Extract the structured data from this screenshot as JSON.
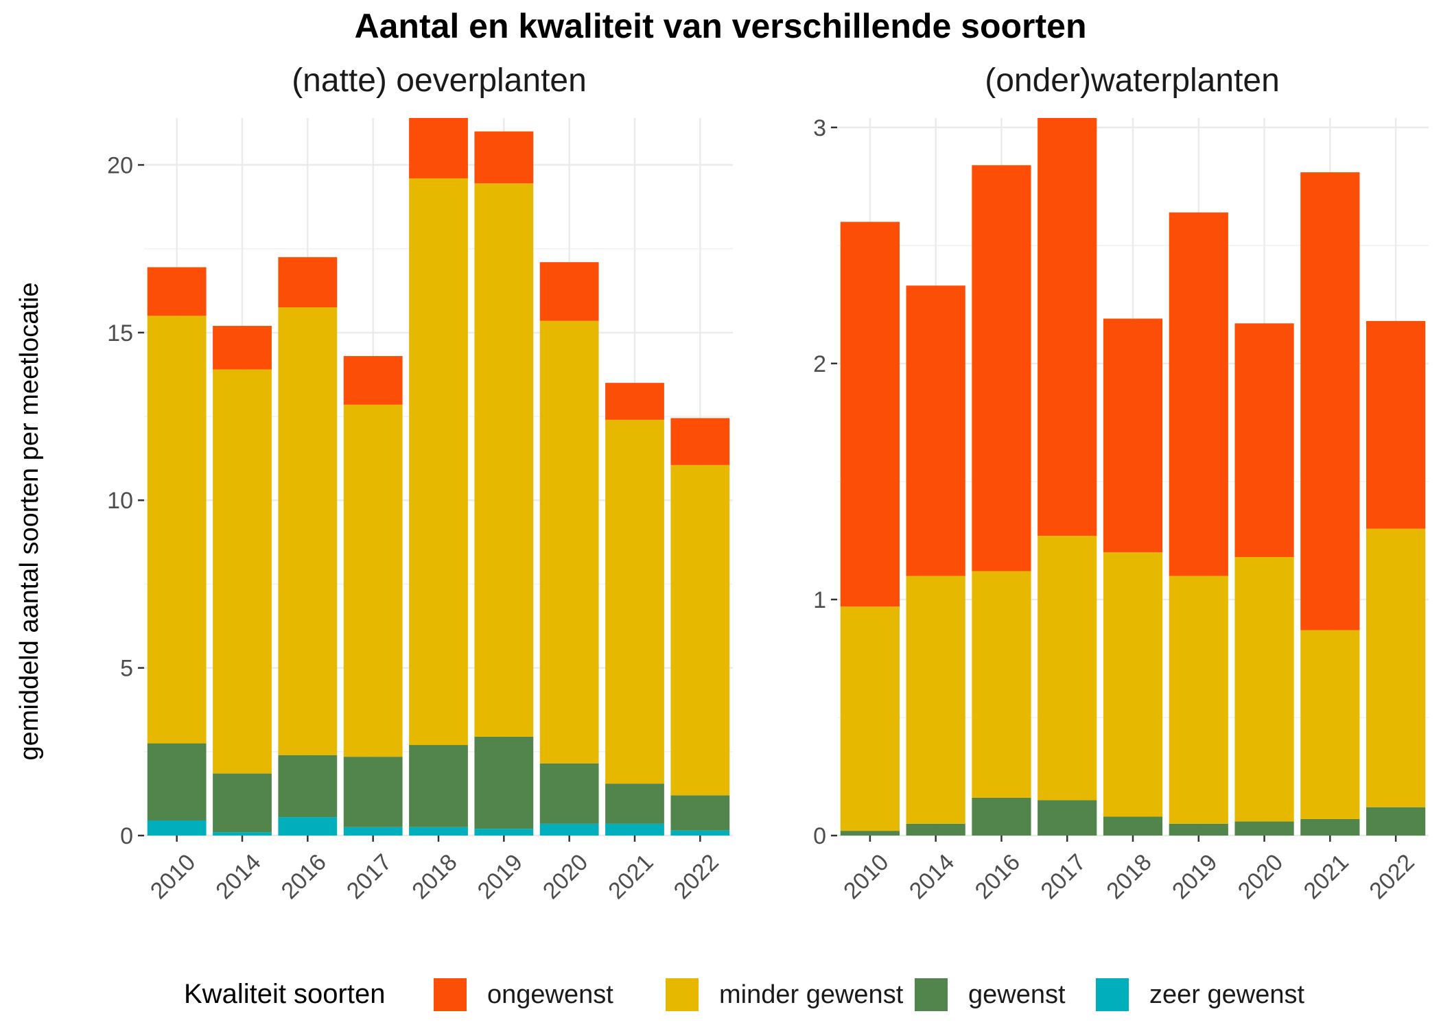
{
  "title": "Aantal en kwaliteit van verschillende soorten",
  "ylabel": "gemiddeld aantal soorten per meetlocatie",
  "legend": {
    "title": "Kwaliteit soorten",
    "placement": "bottom",
    "items": [
      {
        "label": "ongewenst",
        "color": "#FC4E07"
      },
      {
        "label": "minder gewenst",
        "color": "#E7B800"
      },
      {
        "label": "gewenst",
        "color": "#52854C"
      },
      {
        "label": "zeer gewenst",
        "color": "#00AFBB"
      }
    ]
  },
  "chart_data": [
    {
      "type": "bar",
      "stacked": true,
      "subtitle": "(natte) oeverplanten",
      "categories": [
        "2010",
        "2014",
        "2016",
        "2017",
        "2018",
        "2019",
        "2020",
        "2021",
        "2022"
      ],
      "ylim": [
        0,
        21.4
      ],
      "yticks": [
        0,
        5,
        10,
        15,
        20
      ],
      "ytick_labels": [
        "0",
        "5",
        "10",
        "15",
        "20"
      ],
      "grid": true,
      "series": [
        {
          "name": "zeer gewenst",
          "color": "#00AFBB",
          "values": [
            0.45,
            0.1,
            0.55,
            0.25,
            0.25,
            0.2,
            0.35,
            0.35,
            0.15
          ]
        },
        {
          "name": "gewenst",
          "color": "#52854C",
          "values": [
            2.3,
            1.75,
            1.85,
            2.1,
            2.45,
            2.75,
            1.8,
            1.2,
            1.05
          ]
        },
        {
          "name": "minder gewenst",
          "color": "#E7B800",
          "values": [
            12.75,
            12.05,
            13.35,
            10.5,
            16.9,
            16.5,
            13.2,
            10.85,
            9.85
          ]
        },
        {
          "name": "ongewenst",
          "color": "#FC4E07",
          "values": [
            1.45,
            1.3,
            1.5,
            1.45,
            1.8,
            1.55,
            1.75,
            1.1,
            1.4
          ]
        }
      ]
    },
    {
      "type": "bar",
      "stacked": true,
      "subtitle": "(onder)waterplanten",
      "categories": [
        "2010",
        "2014",
        "2016",
        "2017",
        "2018",
        "2019",
        "2020",
        "2021",
        "2022"
      ],
      "ylim": [
        0,
        3.04
      ],
      "yticks": [
        0,
        1,
        2,
        3
      ],
      "ytick_labels": [
        "0",
        "1",
        "2",
        "3"
      ],
      "grid": true,
      "series": [
        {
          "name": "zeer gewenst",
          "color": "#00AFBB",
          "values": [
            0,
            0,
            0,
            0,
            0,
            0,
            0,
            0,
            0
          ]
        },
        {
          "name": "gewenst",
          "color": "#52854C",
          "values": [
            0.02,
            0.05,
            0.16,
            0.15,
            0.08,
            0.05,
            0.06,
            0.07,
            0.12
          ]
        },
        {
          "name": "minder gewenst",
          "color": "#E7B800",
          "values": [
            0.95,
            1.05,
            0.96,
            1.12,
            1.12,
            1.05,
            1.12,
            0.8,
            1.18
          ]
        },
        {
          "name": "ongewenst",
          "color": "#FC4E07",
          "values": [
            1.63,
            1.23,
            1.72,
            1.77,
            0.99,
            1.54,
            0.99,
            1.94,
            0.88
          ]
        }
      ]
    }
  ]
}
